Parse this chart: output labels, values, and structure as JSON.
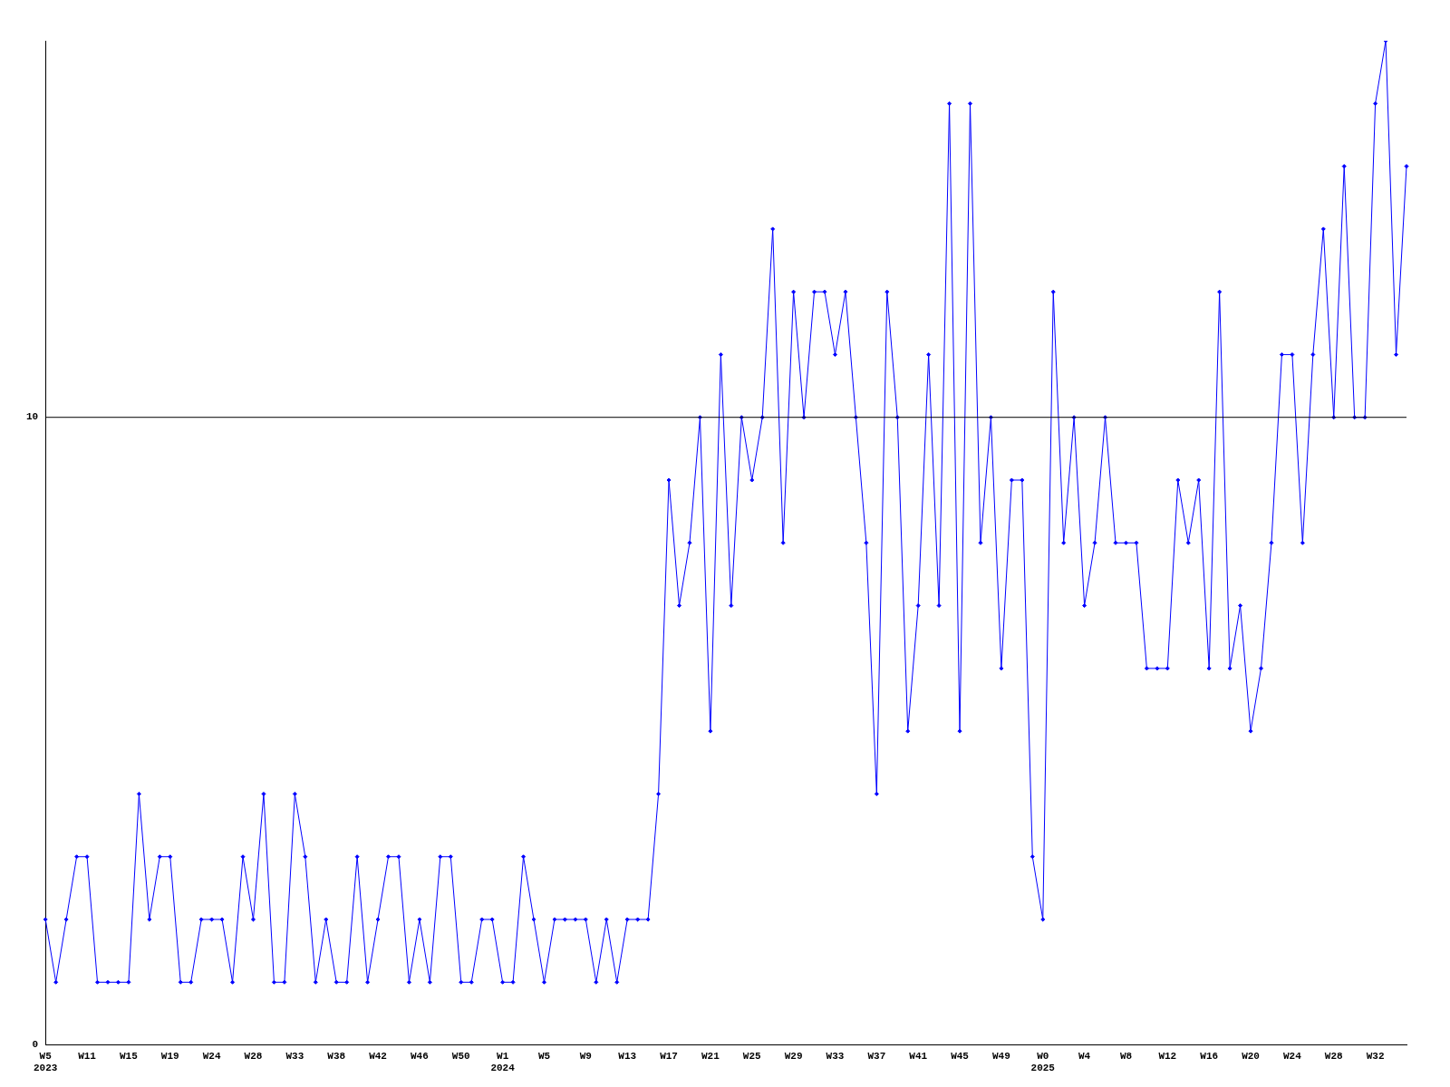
{
  "chart_data": {
    "type": "line",
    "categories": [
      "W5\n2023",
      null,
      null,
      null,
      "W11",
      null,
      null,
      null,
      "W15",
      null,
      null,
      null,
      "W19",
      null,
      null,
      null,
      "W24",
      null,
      null,
      null,
      "W28",
      null,
      null,
      null,
      "W33",
      null,
      null,
      null,
      "W38",
      null,
      null,
      null,
      "W42",
      null,
      null,
      null,
      "W46",
      null,
      null,
      null,
      "W50",
      null,
      null,
      null,
      "W1\n2024",
      null,
      null,
      null,
      "W5",
      null,
      null,
      null,
      "W9",
      null,
      null,
      null,
      "W13",
      null,
      null,
      null,
      "W17",
      null,
      null,
      null,
      "W21",
      null,
      null,
      null,
      "W25",
      null,
      null,
      null,
      "W29",
      null,
      null,
      null,
      "W33",
      null,
      null,
      null,
      "W37",
      null,
      null,
      null,
      "W41",
      null,
      null,
      null,
      "W45",
      null,
      null,
      null,
      "W49",
      null,
      null,
      null,
      "W0\n2025",
      null,
      null,
      null,
      "W4",
      null,
      null,
      null,
      "W8",
      null,
      null,
      null,
      "W12",
      null,
      null,
      null,
      "W16",
      null,
      null,
      null,
      "W20",
      null,
      null,
      null,
      "W24",
      null,
      null,
      null,
      "W28",
      null,
      null,
      null,
      "W32",
      null,
      null,
      null
    ],
    "series": [
      {
        "color": "#0000ff",
        "values": [
          2,
          1,
          2,
          3,
          3,
          1,
          1,
          1,
          1,
          4,
          2,
          3,
          3,
          1,
          1,
          2,
          2,
          2,
          1,
          3,
          2,
          4,
          1,
          1,
          4,
          3,
          1,
          2,
          1,
          1,
          3,
          1,
          2,
          3,
          3,
          1,
          2,
          1,
          3,
          3,
          1,
          1,
          2,
          2,
          1,
          1,
          3,
          2,
          1,
          2,
          2,
          2,
          2,
          1,
          2,
          1,
          2,
          2,
          2,
          4,
          9,
          7,
          8,
          10,
          5,
          11,
          7,
          10,
          9,
          10,
          13,
          8,
          12,
          10,
          12,
          12,
          11,
          12,
          10,
          8,
          4,
          12,
          10,
          5,
          7,
          11,
          7,
          15,
          5,
          15,
          8,
          10,
          6,
          9,
          9,
          3,
          2,
          12,
          8,
          10,
          7,
          8,
          10,
          8,
          8,
          8,
          6,
          6,
          6,
          9,
          8,
          9,
          6,
          12,
          6,
          7,
          5,
          6,
          8,
          11,
          11,
          8,
          11,
          13,
          10,
          14,
          10,
          10,
          15,
          16,
          11,
          14
        ]
      }
    ],
    "ylim": [
      0,
      16
    ],
    "yticks": [
      0,
      10
    ],
    "ref_lines": [
      {
        "axis": "y",
        "value": 10,
        "color": "#000000"
      }
    ],
    "grid": false,
    "legend": false,
    "marker": "diamond",
    "line_style": "solid"
  }
}
